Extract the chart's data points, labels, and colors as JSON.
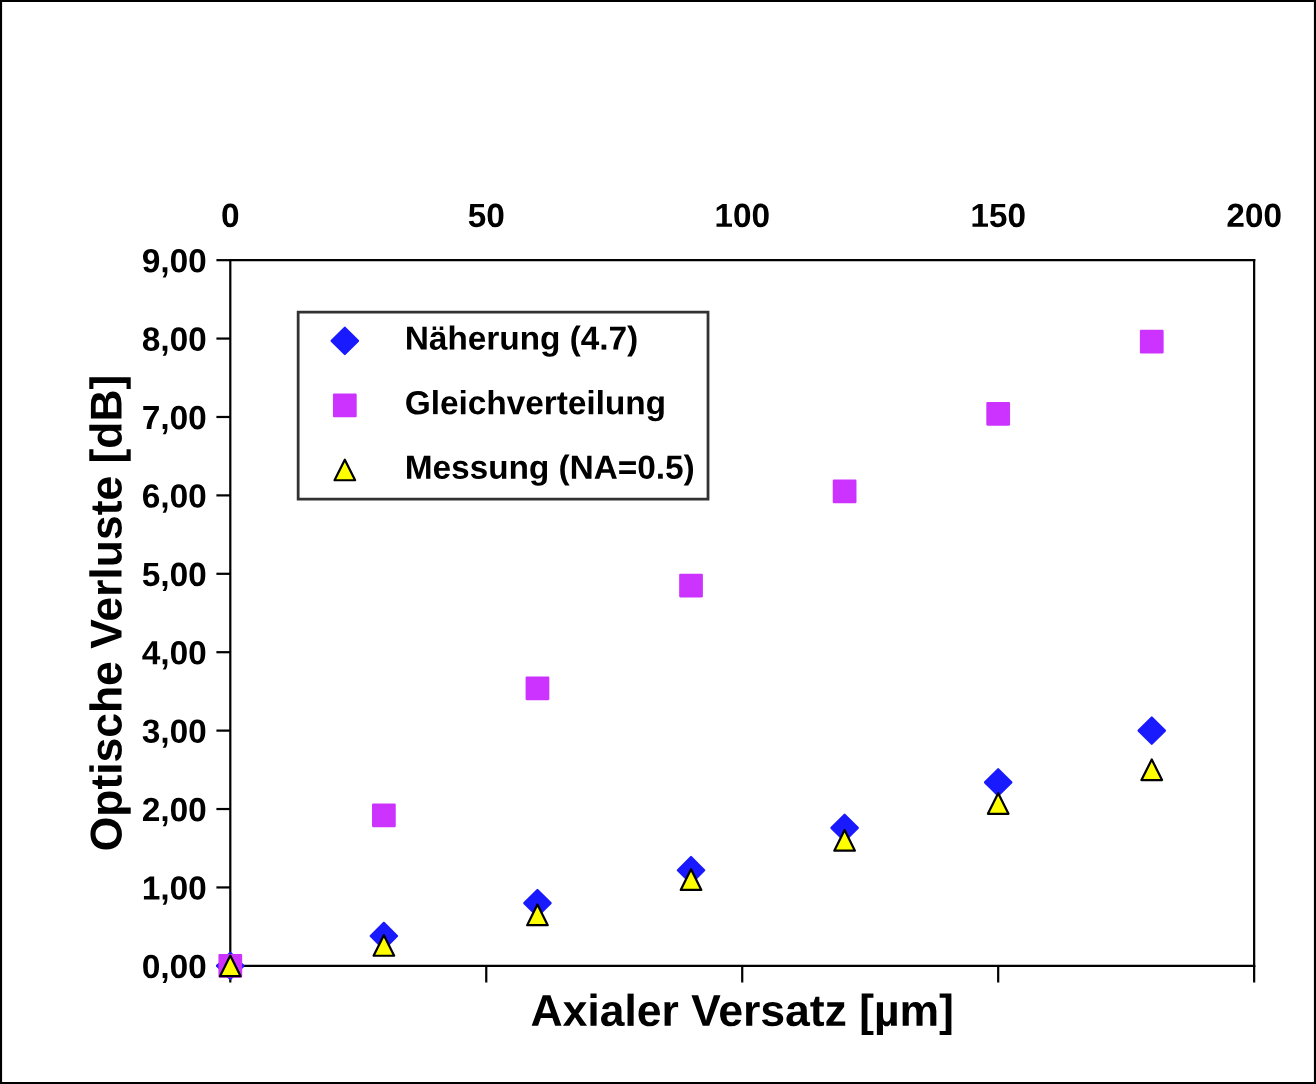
{
  "chart_data": {
    "type": "scatter",
    "xlabel": "Axialer Versatz [µm]",
    "ylabel": "Optische Verluste [dB]",
    "x": [
      0,
      30,
      60,
      90,
      120,
      150,
      180
    ],
    "series": [
      {
        "name": "Näherung (4.7)",
        "color": "#1a1aff",
        "marker": "diamond",
        "values": [
          0,
          0.38,
          0.8,
          1.22,
          1.76,
          2.34,
          3.0
        ]
      },
      {
        "name": "Gleichverteilung",
        "color": "#cc33ff",
        "marker": "square",
        "values": [
          0,
          1.92,
          3.54,
          4.85,
          6.05,
          7.04,
          7.96
        ]
      },
      {
        "name": "Messung (NA=0.5)",
        "color": "#ffff00",
        "marker": "triangle",
        "values": [
          0,
          0.26,
          0.65,
          1.1,
          1.6,
          2.07,
          2.5
        ]
      }
    ],
    "xlim": [
      0,
      200
    ],
    "xticks": [
      0,
      50,
      100,
      150,
      200
    ],
    "ylim": [
      0,
      9
    ],
    "yticks": [
      {
        "value": 0,
        "label": "0,00"
      },
      {
        "value": 1,
        "label": "1,00"
      },
      {
        "value": 2,
        "label": "2,00"
      },
      {
        "value": 3,
        "label": "3,00"
      },
      {
        "value": 4,
        "label": "4,00"
      },
      {
        "value": 5,
        "label": "5,00"
      },
      {
        "value": 6,
        "label": "6,00"
      },
      {
        "value": 7,
        "label": "7,00"
      },
      {
        "value": 8,
        "label": "8,00"
      },
      {
        "value": 9,
        "label": "9,00"
      }
    ],
    "legend": "top left",
    "grid": false
  }
}
